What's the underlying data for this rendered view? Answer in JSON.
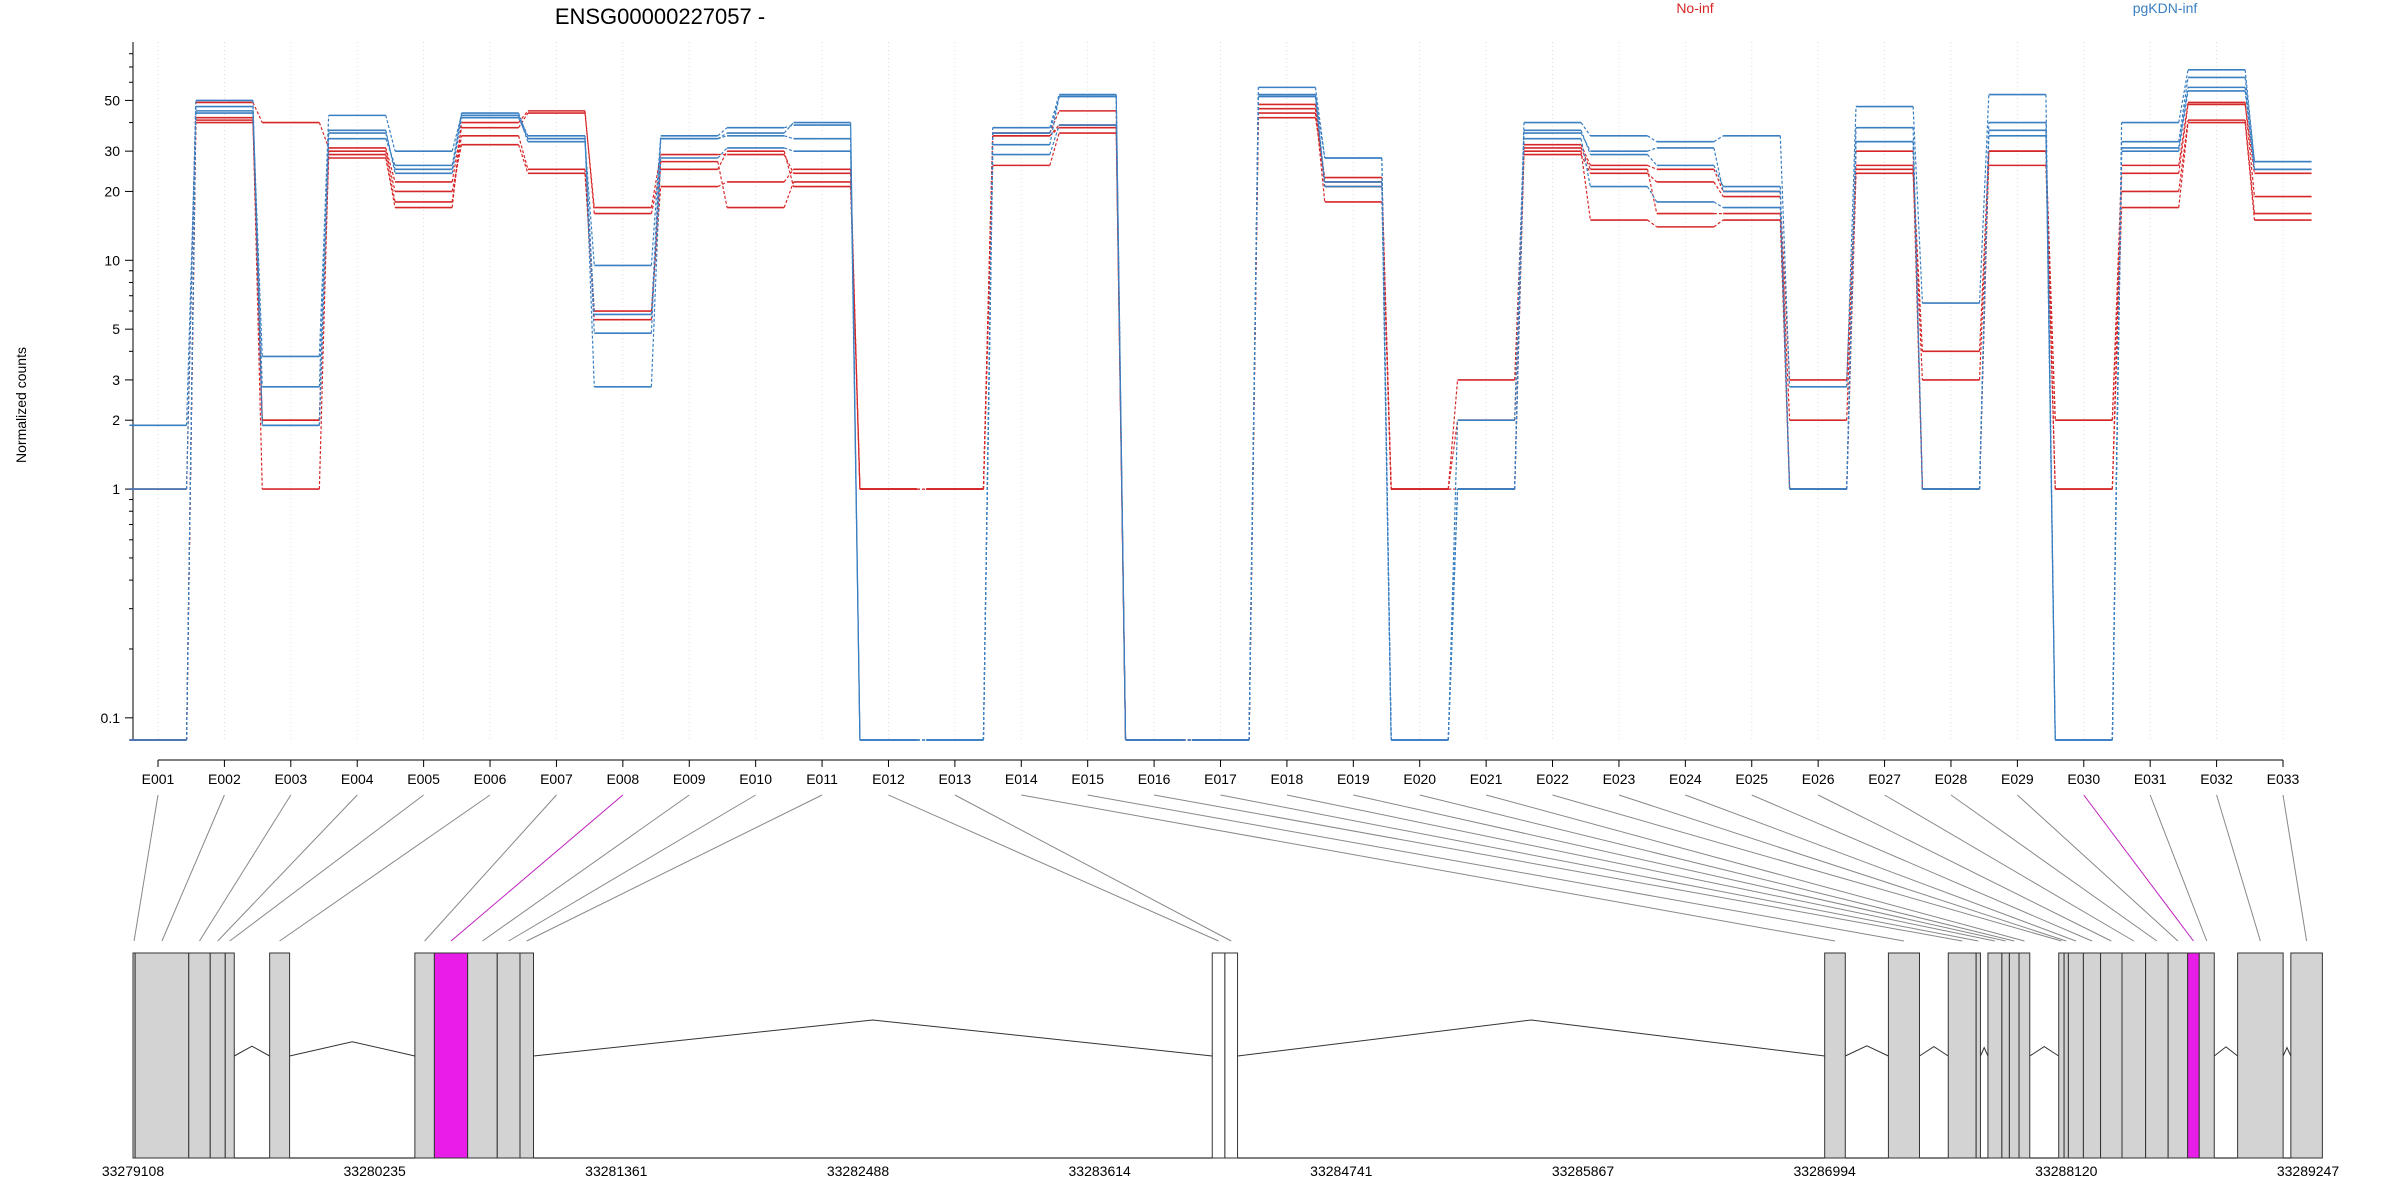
{
  "chart_data": {
    "type": "line",
    "title": "ENSG00000227057 -",
    "ylabel": "Normalized counts",
    "xlabel": "",
    "yscale": "log",
    "ylim": [
      0.08,
      90
    ],
    "yticks": [
      0.1,
      1,
      2,
      3,
      5,
      10,
      20,
      30,
      50
    ],
    "grid": "vertical dotted",
    "legend_placement": "top",
    "legend": [
      {
        "name": "No-inf",
        "color": "#d62728"
      },
      {
        "name": "pgKDN-inf",
        "color": "#3a7fc1"
      }
    ],
    "categories": [
      "E001",
      "E002",
      "E003",
      "E004",
      "E005",
      "E006",
      "E007",
      "E008",
      "E009",
      "E010",
      "E011",
      "E012",
      "E013",
      "E014",
      "E015",
      "E016",
      "E017",
      "E018",
      "E019",
      "E020",
      "E021",
      "E022",
      "E023",
      "E024",
      "E025",
      "E026",
      "E027",
      "E028",
      "E029",
      "E030",
      "E031",
      "E032",
      "E033"
    ],
    "series": [
      {
        "group": "No-inf",
        "values": [
          1,
          49,
          40,
          31,
          22,
          38,
          44,
          17,
          29,
          29,
          24,
          1,
          1,
          36,
          45,
          0.08,
          0.08,
          44,
          22,
          1,
          2,
          29,
          24,
          22,
          19,
          3,
          25,
          4,
          30,
          2,
          26,
          49,
          19
        ]
      },
      {
        "group": "No-inf",
        "values": [
          0.08,
          40,
          2,
          28,
          17,
          40,
          45,
          16,
          25,
          30,
          21,
          1,
          1,
          35,
          38,
          0.08,
          0.08,
          46,
          18,
          1,
          1,
          30,
          15,
          14,
          15,
          1,
          24,
          3,
          26,
          1,
          17,
          40,
          15
        ]
      },
      {
        "group": "No-inf",
        "values": [
          0.08,
          42,
          1,
          30,
          20,
          32,
          24,
          6,
          21,
          22,
          25,
          1,
          1,
          26,
          36,
          0.08,
          0.08,
          48,
          21,
          1,
          3,
          31,
          25,
          16,
          16,
          2,
          26,
          1,
          30,
          2,
          20,
          41,
          16
        ]
      },
      {
        "group": "No-inf",
        "values": [
          0.08,
          41,
          2,
          29,
          18,
          35,
          25,
          5.5,
          27,
          17,
          22,
          1,
          1,
          35,
          39,
          0.08,
          0.08,
          42,
          23,
          1,
          1,
          32,
          26,
          25,
          20,
          1,
          30,
          1,
          30,
          1,
          24,
          48,
          24
        ]
      },
      {
        "group": "pgKDN-inf",
        "values": [
          1.9,
          44,
          3.8,
          43,
          30,
          43,
          33,
          9.5,
          35,
          38,
          39,
          0.08,
          0.08,
          38,
          53,
          0.08,
          0.08,
          57,
          28,
          0.08,
          2,
          40,
          35,
          33,
          35,
          2.8,
          47,
          6.5,
          53,
          0.08,
          40,
          68,
          27
        ]
      },
      {
        "group": "pgKDN-inf",
        "values": [
          0.08,
          45,
          2.8,
          37,
          24,
          42,
          34,
          4.8,
          34,
          35,
          34,
          0.08,
          0.08,
          32,
          52,
          0.08,
          0.08,
          52,
          28,
          0.08,
          1,
          37,
          29,
          26,
          21,
          1,
          38,
          1,
          40,
          0.08,
          33,
          63,
          27
        ]
      },
      {
        "group": "pgKDN-inf",
        "values": [
          0.08,
          47,
          1.9,
          34,
          26,
          43,
          35,
          2.8,
          28,
          31,
          30,
          0.08,
          0.08,
          29,
          39,
          0.08,
          0.08,
          52,
          22,
          0.08,
          1,
          34,
          21,
          18,
          17,
          1,
          33,
          1,
          37,
          0.08,
          30,
          55,
          25
        ]
      },
      {
        "group": "pgKDN-inf",
        "values": [
          1,
          50,
          1.9,
          36,
          25,
          44,
          34,
          5.8,
          34,
          36,
          40,
          0.08,
          0.08,
          36,
          52,
          0.08,
          0.08,
          53,
          21,
          0.08,
          1,
          36,
          30,
          31,
          20,
          1,
          33,
          1,
          35,
          0.08,
          31,
          57,
          25
        ]
      }
    ]
  },
  "gene_model": {
    "coordinate_labels": [
      "33279108",
      "33280235",
      "33281361",
      "33282488",
      "33283614",
      "33284741",
      "33285867",
      "33286994",
      "33288120",
      "33289247"
    ],
    "coordinate_start": 33279108,
    "coordinate_end": 33289247,
    "exon_fill": "#d3d3d3",
    "highlight_fill": "#e81ee8",
    "highlight_exons": [
      "E008",
      "E030"
    ],
    "exons": [
      {
        "id": "E001",
        "start": 33279108,
        "end": 33279118
      },
      {
        "id": "E002",
        "start": 33279118,
        "end": 33279368
      },
      {
        "id": "E003",
        "start": 33279368,
        "end": 33279468
      },
      {
        "id": "E004",
        "start": 33279468,
        "end": 33279538
      },
      {
        "id": "E005",
        "start": 33279538,
        "end": 33279580
      },
      {
        "id": "E006",
        "start": 33279745,
        "end": 33279838
      },
      {
        "id": "E007",
        "start": 33280422,
        "end": 33280513
      },
      {
        "id": "E008",
        "start": 33280513,
        "end": 33280668
      },
      {
        "id": "E009",
        "start": 33280668,
        "end": 33280806
      },
      {
        "id": "E010",
        "start": 33280806,
        "end": 33280912
      },
      {
        "id": "E011",
        "start": 33280912,
        "end": 33280975
      },
      {
        "id": "E012",
        "start": 33284139,
        "end": 33284198
      },
      {
        "id": "E013",
        "start": 33284198,
        "end": 33284257
      },
      {
        "id": "E014",
        "start": 33286994,
        "end": 33287090
      },
      {
        "id": "E015",
        "start": 33287291,
        "end": 33287436
      },
      {
        "id": "E016",
        "start": 33287570,
        "end": 33287700
      },
      {
        "id": "E017",
        "start": 33287700,
        "end": 33287720
      },
      {
        "id": "E018",
        "start": 33287755,
        "end": 33287820
      },
      {
        "id": "E019",
        "start": 33287820,
        "end": 33287855
      },
      {
        "id": "E020",
        "start": 33287855,
        "end": 33287900
      },
      {
        "id": "E021",
        "start": 33287900,
        "end": 33287950
      },
      {
        "id": "E022",
        "start": 33288085,
        "end": 33288110
      },
      {
        "id": "E023",
        "start": 33288110,
        "end": 33288130
      },
      {
        "id": "E024",
        "start": 33288130,
        "end": 33288200
      },
      {
        "id": "E025",
        "start": 33288200,
        "end": 33288280
      },
      {
        "id": "E026",
        "start": 33288280,
        "end": 33288380
      },
      {
        "id": "E027",
        "start": 33288380,
        "end": 33288490
      },
      {
        "id": "E028",
        "start": 33288490,
        "end": 33288595
      },
      {
        "id": "E029",
        "start": 33288595,
        "end": 33288686
      },
      {
        "id": "E030",
        "start": 33288686,
        "end": 33288740
      },
      {
        "id": "E031",
        "start": 33288740,
        "end": 33288810
      },
      {
        "id": "E032",
        "start": 33288919,
        "end": 33289131
      },
      {
        "id": "E033",
        "start": 33289167,
        "end": 33289314
      }
    ],
    "segments": [
      {
        "start": 33279108,
        "end": 33279580
      },
      {
        "start": 33279745,
        "end": 33279838
      },
      {
        "start": 33280422,
        "end": 33280975
      },
      {
        "start": 33284139,
        "end": 33284257
      },
      {
        "start": 33286994,
        "end": 33287090
      },
      {
        "start": 33287291,
        "end": 33287436
      },
      {
        "start": 33287570,
        "end": 33287720
      },
      {
        "start": 33287755,
        "end": 33287950
      },
      {
        "start": 33288085,
        "end": 33288110
      },
      {
        "start": 33288110,
        "end": 33288810
      },
      {
        "start": 33288919,
        "end": 33289131
      },
      {
        "start": 33289167,
        "end": 33289314
      }
    ]
  }
}
